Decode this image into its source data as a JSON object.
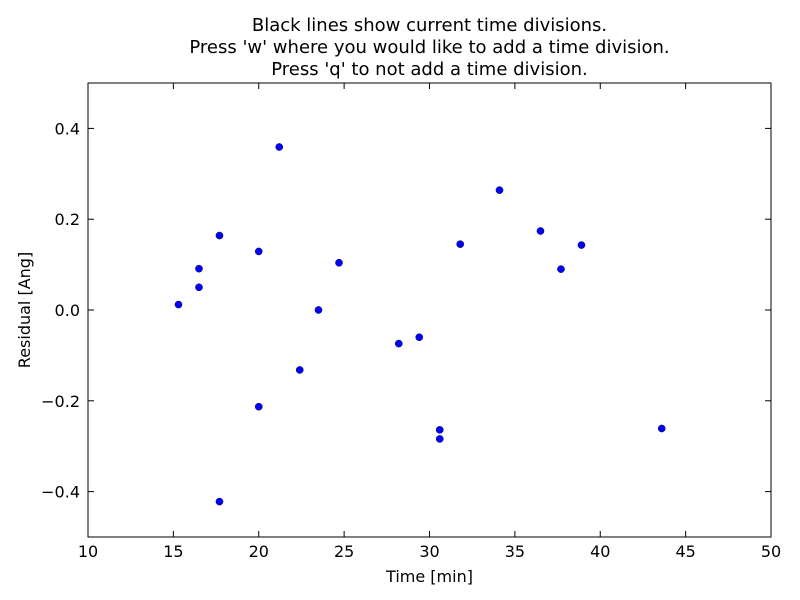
{
  "figure": {
    "title_lines": [
      "Black lines show current time divisions.",
      "Press 'w' where you would like to add a time division.",
      "Press 'q' to not add a time division."
    ]
  },
  "chart_data": {
    "type": "scatter",
    "xlabel": "Time [min]",
    "ylabel": "Residual [Ang]",
    "xlim": [
      10,
      50
    ],
    "ylim": [
      -0.5,
      0.5
    ],
    "xticks": [
      "10",
      "15",
      "20",
      "25",
      "30",
      "35",
      "40",
      "45",
      "50"
    ],
    "yticks": [
      "−0.4",
      "−0.2",
      "0.0",
      "0.2",
      "0.4"
    ],
    "grid": false,
    "point_color": "#0000ff",
    "points": [
      {
        "x": 15.3,
        "y": 0.012
      },
      {
        "x": 16.5,
        "y": 0.091
      },
      {
        "x": 16.5,
        "y": 0.05
      },
      {
        "x": 17.7,
        "y": 0.164
      },
      {
        "x": 17.7,
        "y": -0.422
      },
      {
        "x": 20.0,
        "y": 0.129
      },
      {
        "x": 20.0,
        "y": -0.213
      },
      {
        "x": 21.2,
        "y": 0.359
      },
      {
        "x": 22.4,
        "y": -0.132
      },
      {
        "x": 23.5,
        "y": 0.0
      },
      {
        "x": 24.7,
        "y": 0.104
      },
      {
        "x": 28.2,
        "y": -0.074
      },
      {
        "x": 29.4,
        "y": -0.06
      },
      {
        "x": 30.6,
        "y": -0.264
      },
      {
        "x": 30.6,
        "y": -0.284
      },
      {
        "x": 31.8,
        "y": 0.145
      },
      {
        "x": 34.1,
        "y": 0.264
      },
      {
        "x": 36.5,
        "y": 0.174
      },
      {
        "x": 37.7,
        "y": 0.09
      },
      {
        "x": 38.9,
        "y": 0.143
      },
      {
        "x": 43.6,
        "y": -0.261
      }
    ]
  }
}
